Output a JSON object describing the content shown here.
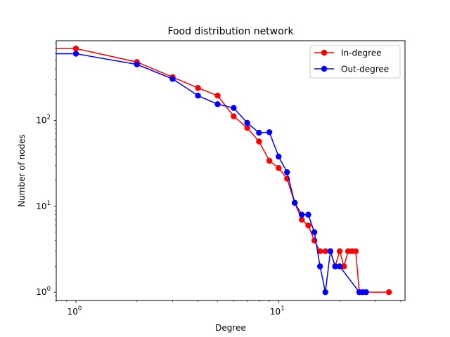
{
  "chart_data": {
    "type": "line",
    "title": "Food distribution network",
    "xlabel": "Degree",
    "ylabel": "Number of nodes",
    "xscale": "log",
    "yscale": "log",
    "xlim": [
      0.8,
      42
    ],
    "ylim": [
      0.8,
      850
    ],
    "x_ticks": [
      {
        "value": 1,
        "label_base": "10",
        "label_exp": "0"
      },
      {
        "value": 10,
        "label_base": "10",
        "label_exp": "1"
      }
    ],
    "y_ticks": [
      {
        "value": 1,
        "label_base": "10",
        "label_exp": "0"
      },
      {
        "value": 10,
        "label_base": "10",
        "label_exp": "1"
      },
      {
        "value": 100,
        "label_base": "10",
        "label_exp": "2"
      }
    ],
    "grid": false,
    "legend_position": "top-right",
    "series": [
      {
        "name": "In-degree",
        "color": "#ff0000",
        "points": [
          [
            0.8,
            690
          ],
          [
            1,
            690
          ],
          [
            2,
            480
          ],
          [
            3,
            320
          ],
          [
            4,
            240
          ],
          [
            5,
            195
          ],
          [
            6,
            112
          ],
          [
            7,
            82
          ],
          [
            8,
            57
          ],
          [
            9,
            34
          ],
          [
            10,
            28
          ],
          [
            11,
            21
          ],
          [
            12,
            11
          ],
          [
            13,
            7
          ],
          [
            14,
            6
          ],
          [
            15,
            4
          ],
          [
            16,
            3
          ],
          [
            17,
            3
          ],
          [
            18,
            3
          ],
          [
            19,
            2
          ],
          [
            20,
            3
          ],
          [
            21,
            2
          ],
          [
            22,
            3
          ],
          [
            23,
            3
          ],
          [
            24,
            3
          ],
          [
            25,
            1
          ],
          [
            26,
            1
          ],
          [
            35,
            1
          ]
        ]
      },
      {
        "name": "Out-degree",
        "color": "#0000ff",
        "points": [
          [
            0.8,
            600
          ],
          [
            1,
            600
          ],
          [
            2,
            450
          ],
          [
            3,
            305
          ],
          [
            4,
            195
          ],
          [
            5,
            155
          ],
          [
            6,
            140
          ],
          [
            7,
            94
          ],
          [
            8,
            72
          ],
          [
            9,
            73
          ],
          [
            10,
            38
          ],
          [
            11,
            25
          ],
          [
            12,
            11
          ],
          [
            13,
            8
          ],
          [
            14,
            8
          ],
          [
            15,
            5
          ],
          [
            16,
            2
          ],
          [
            17,
            1
          ],
          [
            18,
            3
          ],
          [
            19,
            2
          ],
          [
            20,
            2
          ],
          [
            25,
            1
          ],
          [
            26,
            1
          ],
          [
            27,
            1
          ]
        ]
      }
    ]
  }
}
